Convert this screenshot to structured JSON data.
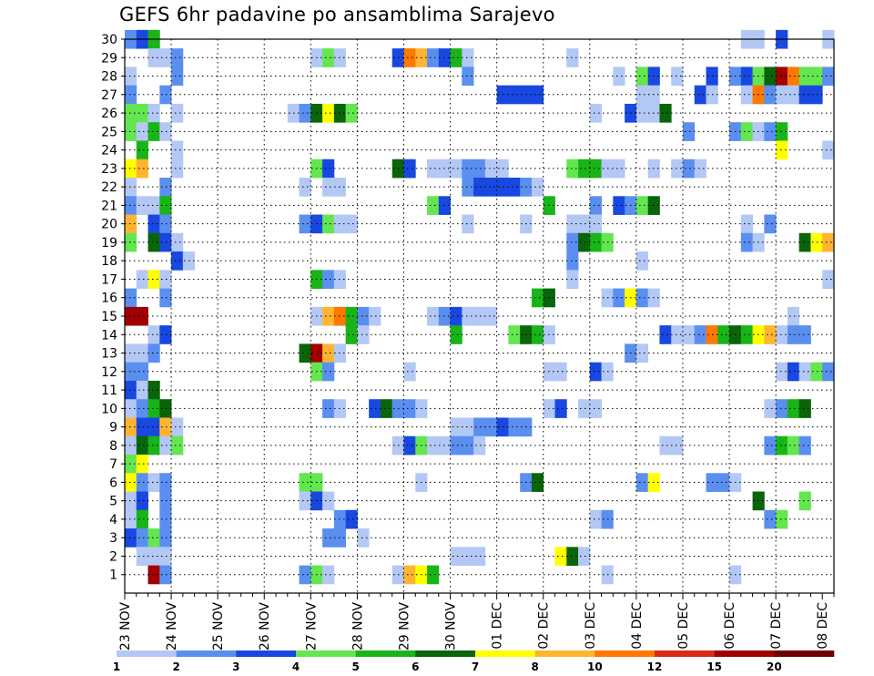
{
  "chart_data": {
    "type": "heatmap",
    "title": "GEFS 6hr padavine po ansamblima Sarajevo",
    "xlabel": "",
    "ylabel": "",
    "x_labels": [
      "23 NOV",
      "24 NOV",
      "25 NOV",
      "26 NOV",
      "27 NOV",
      "28 NOV",
      "29 NOV",
      "30 NOV",
      "01 DEC",
      "02 DEC",
      "03 DEC",
      "04 DEC",
      "05 DEC",
      "06 DEC",
      "07 DEC",
      "08 DEC"
    ],
    "x_steps": 61,
    "step_hours": 6,
    "y_labels": [
      1,
      2,
      3,
      4,
      5,
      6,
      7,
      8,
      9,
      10,
      11,
      12,
      13,
      14,
      15,
      16,
      17,
      18,
      19,
      20,
      21,
      22,
      23,
      24,
      25,
      26,
      27,
      28,
      29,
      30
    ],
    "y_range": [
      0,
      30
    ],
    "grid": true,
    "colorbar": {
      "levels": [
        1,
        2,
        3,
        4,
        5,
        6,
        7,
        8,
        10,
        12,
        15,
        20
      ],
      "colors": [
        "#b4c8f5",
        "#5a8ff0",
        "#1848e0",
        "#64e650",
        "#18b418",
        "#0a640a",
        "#ffff00",
        "#ffb432",
        "#ff7800",
        "#dc2814",
        "#a00000",
        "#6e0000"
      ],
      "placement": "bottom"
    },
    "cells": [
      [
        0,
        30,
        2
      ],
      [
        1,
        30,
        3
      ],
      [
        2,
        30,
        5
      ],
      [
        53,
        30,
        1
      ],
      [
        54,
        30,
        1
      ],
      [
        56,
        30,
        3
      ],
      [
        60,
        30,
        1
      ],
      [
        2,
        29,
        1
      ],
      [
        3,
        29,
        1
      ],
      [
        4,
        29,
        2
      ],
      [
        16,
        29,
        1
      ],
      [
        17,
        29,
        4
      ],
      [
        18,
        29,
        1
      ],
      [
        23,
        29,
        3
      ],
      [
        24,
        29,
        9
      ],
      [
        25,
        29,
        8
      ],
      [
        26,
        29,
        2
      ],
      [
        27,
        29,
        3
      ],
      [
        28,
        29,
        5
      ],
      [
        29,
        29,
        1
      ],
      [
        38,
        29,
        1
      ],
      [
        0,
        28,
        1
      ],
      [
        4,
        28,
        2
      ],
      [
        29,
        28,
        2
      ],
      [
        42,
        28,
        1
      ],
      [
        44,
        28,
        4
      ],
      [
        45,
        28,
        3
      ],
      [
        47,
        28,
        1
      ],
      [
        50,
        28,
        3
      ],
      [
        52,
        28,
        2
      ],
      [
        53,
        28,
        3
      ],
      [
        54,
        28,
        4
      ],
      [
        55,
        28,
        6
      ],
      [
        56,
        28,
        11
      ],
      [
        57,
        28,
        9
      ],
      [
        58,
        28,
        4
      ],
      [
        59,
        28,
        4
      ],
      [
        60,
        28,
        2
      ],
      [
        0,
        27,
        2
      ],
      [
        3,
        27,
        2
      ],
      [
        32,
        27,
        3
      ],
      [
        33,
        27,
        3
      ],
      [
        34,
        27,
        3
      ],
      [
        35,
        27,
        3
      ],
      [
        44,
        27,
        1
      ],
      [
        45,
        27,
        1
      ],
      [
        49,
        27,
        3
      ],
      [
        50,
        27,
        1
      ],
      [
        53,
        27,
        1
      ],
      [
        54,
        27,
        9
      ],
      [
        55,
        27,
        2
      ],
      [
        56,
        27,
        1
      ],
      [
        57,
        27,
        1
      ],
      [
        58,
        27,
        3
      ],
      [
        59,
        27,
        3
      ],
      [
        0,
        26,
        4
      ],
      [
        1,
        26,
        4
      ],
      [
        2,
        26,
        1
      ],
      [
        4,
        26,
        1
      ],
      [
        14,
        26,
        1
      ],
      [
        15,
        26,
        2
      ],
      [
        16,
        26,
        6
      ],
      [
        17,
        26,
        7
      ],
      [
        18,
        26,
        6
      ],
      [
        19,
        26,
        4
      ],
      [
        40,
        26,
        1
      ],
      [
        43,
        26,
        3
      ],
      [
        44,
        26,
        1
      ],
      [
        45,
        26,
        1
      ],
      [
        46,
        26,
        6
      ],
      [
        0,
        25,
        4
      ],
      [
        1,
        25,
        1
      ],
      [
        2,
        25,
        5
      ],
      [
        3,
        25,
        1
      ],
      [
        48,
        25,
        2
      ],
      [
        52,
        25,
        2
      ],
      [
        53,
        25,
        4
      ],
      [
        54,
        25,
        1
      ],
      [
        55,
        25,
        2
      ],
      [
        56,
        25,
        5
      ],
      [
        1,
        24,
        5
      ],
      [
        4,
        24,
        1
      ],
      [
        56,
        24,
        7
      ],
      [
        60,
        24,
        1
      ],
      [
        0,
        23,
        7
      ],
      [
        1,
        23,
        8
      ],
      [
        4,
        23,
        1
      ],
      [
        16,
        23,
        4
      ],
      [
        17,
        23,
        3
      ],
      [
        23,
        23,
        6
      ],
      [
        24,
        23,
        3
      ],
      [
        26,
        23,
        1
      ],
      [
        27,
        23,
        1
      ],
      [
        28,
        23,
        1
      ],
      [
        29,
        23,
        2
      ],
      [
        30,
        23,
        2
      ],
      [
        31,
        23,
        1
      ],
      [
        32,
        23,
        1
      ],
      [
        38,
        23,
        4
      ],
      [
        39,
        23,
        5
      ],
      [
        40,
        23,
        5
      ],
      [
        41,
        23,
        1
      ],
      [
        42,
        23,
        1
      ],
      [
        45,
        23,
        1
      ],
      [
        47,
        23,
        1
      ],
      [
        48,
        23,
        2
      ],
      [
        49,
        23,
        1
      ],
      [
        0,
        22,
        1
      ],
      [
        3,
        22,
        2
      ],
      [
        15,
        22,
        1
      ],
      [
        17,
        22,
        1
      ],
      [
        18,
        22,
        1
      ],
      [
        29,
        22,
        2
      ],
      [
        30,
        22,
        3
      ],
      [
        31,
        22,
        3
      ],
      [
        32,
        22,
        3
      ],
      [
        33,
        22,
        3
      ],
      [
        34,
        22,
        2
      ],
      [
        35,
        22,
        1
      ],
      [
        0,
        21,
        2
      ],
      [
        1,
        21,
        1
      ],
      [
        2,
        21,
        1
      ],
      [
        3,
        21,
        5
      ],
      [
        26,
        21,
        4
      ],
      [
        27,
        21,
        3
      ],
      [
        36,
        21,
        5
      ],
      [
        40,
        21,
        2
      ],
      [
        42,
        21,
        3
      ],
      [
        43,
        21,
        2
      ],
      [
        44,
        21,
        4
      ],
      [
        45,
        21,
        6
      ],
      [
        0,
        20,
        8
      ],
      [
        2,
        20,
        3
      ],
      [
        3,
        20,
        2
      ],
      [
        15,
        20,
        2
      ],
      [
        16,
        20,
        3
      ],
      [
        17,
        20,
        4
      ],
      [
        18,
        20,
        1
      ],
      [
        19,
        20,
        1
      ],
      [
        29,
        20,
        1
      ],
      [
        34,
        20,
        1
      ],
      [
        38,
        20,
        1
      ],
      [
        39,
        20,
        1
      ],
      [
        40,
        20,
        1
      ],
      [
        53,
        20,
        1
      ],
      [
        55,
        20,
        2
      ],
      [
        0,
        19,
        4
      ],
      [
        2,
        19,
        6
      ],
      [
        3,
        19,
        3
      ],
      [
        4,
        19,
        1
      ],
      [
        38,
        19,
        2
      ],
      [
        39,
        19,
        6
      ],
      [
        40,
        19,
        5
      ],
      [
        41,
        19,
        4
      ],
      [
        53,
        19,
        2
      ],
      [
        54,
        19,
        1
      ],
      [
        58,
        19,
        6
      ],
      [
        59,
        19,
        7
      ],
      [
        60,
        19,
        8
      ],
      [
        4,
        18,
        3
      ],
      [
        5,
        18,
        1
      ],
      [
        38,
        18,
        2
      ],
      [
        44,
        18,
        1
      ],
      [
        1,
        17,
        1
      ],
      [
        2,
        17,
        7
      ],
      [
        3,
        17,
        1
      ],
      [
        16,
        17,
        5
      ],
      [
        17,
        17,
        2
      ],
      [
        18,
        17,
        1
      ],
      [
        38,
        17,
        1
      ],
      [
        60,
        17,
        1
      ],
      [
        0,
        16,
        2
      ],
      [
        3,
        16,
        2
      ],
      [
        35,
        16,
        5
      ],
      [
        36,
        16,
        6
      ],
      [
        41,
        16,
        1
      ],
      [
        42,
        16,
        2
      ],
      [
        43,
        16,
        7
      ],
      [
        44,
        16,
        2
      ],
      [
        45,
        16,
        1
      ],
      [
        0,
        15,
        11
      ],
      [
        1,
        15,
        11
      ],
      [
        16,
        15,
        1
      ],
      [
        17,
        15,
        8
      ],
      [
        18,
        15,
        9
      ],
      [
        19,
        15,
        5
      ],
      [
        20,
        15,
        2
      ],
      [
        21,
        15,
        1
      ],
      [
        26,
        15,
        1
      ],
      [
        27,
        15,
        2
      ],
      [
        28,
        15,
        3
      ],
      [
        29,
        15,
        1
      ],
      [
        30,
        15,
        1
      ],
      [
        31,
        15,
        1
      ],
      [
        57,
        15,
        1
      ],
      [
        2,
        14,
        1
      ],
      [
        3,
        14,
        3
      ],
      [
        19,
        14,
        5
      ],
      [
        20,
        14,
        1
      ],
      [
        28,
        14,
        5
      ],
      [
        33,
        14,
        4
      ],
      [
        34,
        14,
        6
      ],
      [
        35,
        14,
        5
      ],
      [
        36,
        14,
        1
      ],
      [
        46,
        14,
        3
      ],
      [
        47,
        14,
        1
      ],
      [
        48,
        14,
        1
      ],
      [
        49,
        14,
        2
      ],
      [
        50,
        14,
        9
      ],
      [
        51,
        14,
        5
      ],
      [
        52,
        14,
        6
      ],
      [
        53,
        14,
        5
      ],
      [
        54,
        14,
        7
      ],
      [
        55,
        14,
        8
      ],
      [
        56,
        14,
        1
      ],
      [
        57,
        14,
        2
      ],
      [
        58,
        14,
        2
      ],
      [
        0,
        13,
        1
      ],
      [
        1,
        13,
        1
      ],
      [
        2,
        13,
        2
      ],
      [
        15,
        13,
        6
      ],
      [
        16,
        13,
        11
      ],
      [
        17,
        13,
        8
      ],
      [
        18,
        13,
        1
      ],
      [
        43,
        13,
        2
      ],
      [
        44,
        13,
        1
      ],
      [
        0,
        12,
        2
      ],
      [
        1,
        12,
        2
      ],
      [
        16,
        12,
        4
      ],
      [
        17,
        12,
        2
      ],
      [
        24,
        12,
        1
      ],
      [
        36,
        12,
        1
      ],
      [
        37,
        12,
        1
      ],
      [
        40,
        12,
        3
      ],
      [
        41,
        12,
        1
      ],
      [
        56,
        12,
        1
      ],
      [
        57,
        12,
        3
      ],
      [
        58,
        12,
        1
      ],
      [
        59,
        12,
        4
      ],
      [
        60,
        12,
        2
      ],
      [
        0,
        11,
        3
      ],
      [
        1,
        11,
        1
      ],
      [
        2,
        11,
        6
      ],
      [
        0,
        10,
        1
      ],
      [
        1,
        10,
        2
      ],
      [
        2,
        10,
        5
      ],
      [
        3,
        10,
        6
      ],
      [
        17,
        10,
        2
      ],
      [
        18,
        10,
        1
      ],
      [
        21,
        10,
        3
      ],
      [
        22,
        10,
        6
      ],
      [
        23,
        10,
        2
      ],
      [
        24,
        10,
        2
      ],
      [
        25,
        10,
        1
      ],
      [
        36,
        10,
        1
      ],
      [
        37,
        10,
        3
      ],
      [
        39,
        10,
        1
      ],
      [
        40,
        10,
        1
      ],
      [
        55,
        10,
        1
      ],
      [
        56,
        10,
        2
      ],
      [
        57,
        10,
        5
      ],
      [
        58,
        10,
        6
      ],
      [
        0,
        9,
        8
      ],
      [
        1,
        9,
        3
      ],
      [
        2,
        9,
        3
      ],
      [
        3,
        9,
        8
      ],
      [
        4,
        9,
        1
      ],
      [
        28,
        9,
        1
      ],
      [
        29,
        9,
        1
      ],
      [
        30,
        9,
        2
      ],
      [
        31,
        9,
        2
      ],
      [
        32,
        9,
        3
      ],
      [
        33,
        9,
        2
      ],
      [
        34,
        9,
        2
      ],
      [
        0,
        8,
        1
      ],
      [
        1,
        8,
        6
      ],
      [
        2,
        8,
        5
      ],
      [
        3,
        8,
        1
      ],
      [
        4,
        8,
        4
      ],
      [
        23,
        8,
        1
      ],
      [
        24,
        8,
        3
      ],
      [
        25,
        8,
        4
      ],
      [
        26,
        8,
        1
      ],
      [
        27,
        8,
        1
      ],
      [
        28,
        8,
        2
      ],
      [
        29,
        8,
        2
      ],
      [
        30,
        8,
        1
      ],
      [
        46,
        8,
        1
      ],
      [
        47,
        8,
        1
      ],
      [
        55,
        8,
        2
      ],
      [
        56,
        8,
        5
      ],
      [
        57,
        8,
        4
      ],
      [
        58,
        8,
        2
      ],
      [
        0,
        7,
        4
      ],
      [
        1,
        7,
        7
      ],
      [
        0,
        6,
        7
      ],
      [
        1,
        6,
        2
      ],
      [
        2,
        6,
        1
      ],
      [
        3,
        6,
        2
      ],
      [
        15,
        6,
        4
      ],
      [
        16,
        6,
        4
      ],
      [
        25,
        6,
        1
      ],
      [
        34,
        6,
        2
      ],
      [
        35,
        6,
        6
      ],
      [
        44,
        6,
        2
      ],
      [
        45,
        6,
        7
      ],
      [
        50,
        6,
        2
      ],
      [
        51,
        6,
        2
      ],
      [
        52,
        6,
        1
      ],
      [
        0,
        5,
        1
      ],
      [
        1,
        5,
        3
      ],
      [
        3,
        5,
        2
      ],
      [
        15,
        5,
        1
      ],
      [
        16,
        5,
        3
      ],
      [
        17,
        5,
        1
      ],
      [
        54,
        5,
        6
      ],
      [
        58,
        5,
        4
      ],
      [
        0,
        4,
        1
      ],
      [
        1,
        4,
        5
      ],
      [
        3,
        4,
        2
      ],
      [
        18,
        4,
        2
      ],
      [
        19,
        4,
        3
      ],
      [
        40,
        4,
        1
      ],
      [
        41,
        4,
        2
      ],
      [
        55,
        4,
        2
      ],
      [
        56,
        4,
        4
      ],
      [
        0,
        3,
        3
      ],
      [
        1,
        3,
        2
      ],
      [
        2,
        3,
        4
      ],
      [
        3,
        3,
        2
      ],
      [
        17,
        3,
        2
      ],
      [
        18,
        3,
        2
      ],
      [
        20,
        3,
        1
      ],
      [
        1,
        2,
        1
      ],
      [
        2,
        2,
        1
      ],
      [
        3,
        2,
        1
      ],
      [
        28,
        2,
        1
      ],
      [
        29,
        2,
        1
      ],
      [
        30,
        2,
        1
      ],
      [
        37,
        2,
        7
      ],
      [
        38,
        2,
        6
      ],
      [
        39,
        2,
        1
      ],
      [
        2,
        1,
        11
      ],
      [
        3,
        1,
        2
      ],
      [
        15,
        1,
        2
      ],
      [
        16,
        1,
        4
      ],
      [
        17,
        1,
        1
      ],
      [
        23,
        1,
        1
      ],
      [
        24,
        1,
        8
      ],
      [
        25,
        1,
        7
      ],
      [
        26,
        1,
        5
      ],
      [
        41,
        1,
        1
      ],
      [
        52,
        1,
        1
      ]
    ]
  }
}
